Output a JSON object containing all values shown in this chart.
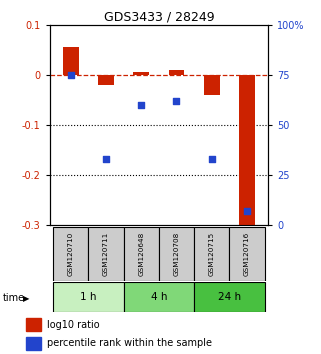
{
  "title": "GDS3433 / 28249",
  "samples": [
    "GSM120710",
    "GSM120711",
    "GSM120648",
    "GSM120708",
    "GSM120715",
    "GSM120716"
  ],
  "log10_ratio": [
    0.055,
    -0.02,
    0.005,
    0.01,
    -0.04,
    -0.305
  ],
  "percentile_rank": [
    75,
    33,
    60,
    62,
    33,
    7
  ],
  "ylim_left": [
    -0.3,
    0.1
  ],
  "ylim_right": [
    0,
    100
  ],
  "yticks_left": [
    0.1,
    0.0,
    -0.1,
    -0.2,
    -0.3
  ],
  "yticks_right": [
    100,
    75,
    50,
    25,
    0
  ],
  "groups": [
    {
      "label": "1 h",
      "indices": [
        0,
        1
      ],
      "color": "#c8f0c0"
    },
    {
      "label": "4 h",
      "indices": [
        2,
        3
      ],
      "color": "#80d878"
    },
    {
      "label": "24 h",
      "indices": [
        4,
        5
      ],
      "color": "#48c040"
    }
  ],
  "bar_color": "#cc2200",
  "dot_color": "#2244cc",
  "dashed_line_color": "#cc2200",
  "bg_color": "#ffffff",
  "sample_box_color": "#cccccc",
  "bar_width": 0.45,
  "dot_size": 22
}
